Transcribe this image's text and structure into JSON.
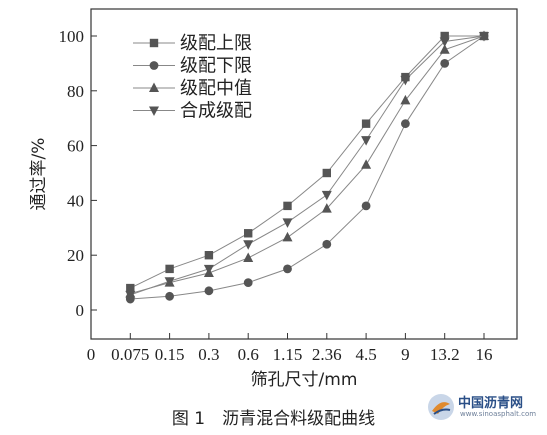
{
  "chart_data": {
    "type": "line",
    "categories": [
      "0",
      "0.075",
      "0.15",
      "0.3",
      "0.6",
      "1.15",
      "2.36",
      "4.5",
      "9",
      "13.2",
      "16"
    ],
    "xlabel": "筛孔尺寸/mm",
    "ylabel": "通过率/%",
    "ylim": [
      0,
      100
    ],
    "yticks": [
      0,
      20,
      40,
      60,
      80,
      100
    ],
    "legend_position": "top-left",
    "grid": false,
    "series": [
      {
        "name": "级配上限",
        "marker": "square",
        "values": [
          null,
          8,
          15,
          20,
          28,
          38,
          50,
          68,
          85,
          100,
          100
        ]
      },
      {
        "name": "级配下限",
        "marker": "circle",
        "values": [
          null,
          4,
          5,
          7,
          10,
          15,
          24,
          38,
          68,
          90,
          100
        ]
      },
      {
        "name": "级配中值",
        "marker": "triangle-up",
        "values": [
          null,
          6,
          10,
          13.5,
          19,
          26.5,
          37,
          53,
          76.5,
          95,
          100
        ]
      },
      {
        "name": "合成级配",
        "marker": "triangle-down",
        "values": [
          null,
          5.5,
          10.5,
          15,
          24,
          32,
          42,
          62,
          84,
          98,
          100
        ]
      }
    ]
  },
  "caption": "图 1　沥青混合料级配曲线",
  "watermark": {
    "name": "中国沥青网",
    "url": "www.sinoasphalt.com"
  },
  "colors": {
    "line": "#888888",
    "marker": "#555555",
    "axis": "#333333"
  }
}
